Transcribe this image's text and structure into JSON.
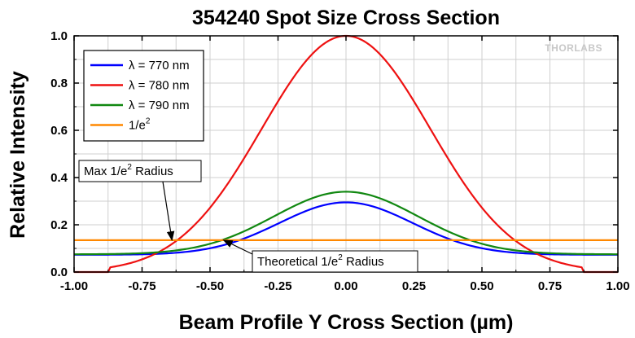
{
  "chart_data": {
    "type": "line",
    "title": "354240 Spot Size Cross Section",
    "xlabel": "Beam Profile Y Cross Section (µm)",
    "ylabel": "Relative Intensity",
    "xlim": [
      -1.0,
      1.0
    ],
    "ylim": [
      0.0,
      1.0
    ],
    "x_ticks": [
      "-1.00",
      "-0.75",
      "-0.50",
      "-0.25",
      "0.00",
      "0.25",
      "0.50",
      "0.75",
      "1.00"
    ],
    "y_ticks": [
      "0.0",
      "0.2",
      "0.4",
      "0.6",
      "0.8",
      "1.0"
    ],
    "grid": true,
    "legend_position": "top-left",
    "series": [
      {
        "name": "λ = 770 nm",
        "color": "#0000ff",
        "kind": "gaussian",
        "peak": 0.295,
        "sigma": 0.245,
        "offset": 0.073
      },
      {
        "name": "λ = 780 nm",
        "color": "#ee1111",
        "kind": "gaussian",
        "peak": 1.0,
        "sigma": 0.31,
        "offset": 0.0
      },
      {
        "name": "λ = 790 nm",
        "color": "#118811",
        "kind": "gaussian",
        "peak": 0.34,
        "sigma": 0.265,
        "offset": 0.075
      },
      {
        "name": "1/e²",
        "color": "#ff8800",
        "kind": "constant",
        "value": 0.135
      }
    ],
    "legend": [
      {
        "prefix": "λ",
        "text": " = 770 nm"
      },
      {
        "prefix": "λ",
        "text": " = 780 nm"
      },
      {
        "prefix": "λ",
        "text": " = 790 nm"
      },
      {
        "prefix": "",
        "text": "1/e",
        "sup": "2"
      }
    ],
    "annotations": [
      {
        "text": "Max 1/e",
        "sup": "2",
        "tail": " Radius",
        "target_x": -0.64,
        "target_y": 0.135
      },
      {
        "text": "Theoretical 1/e",
        "sup": "2",
        "tail": " Radius",
        "target_x": -0.45,
        "target_y": 0.135
      }
    ],
    "logo": "THORLABS"
  }
}
